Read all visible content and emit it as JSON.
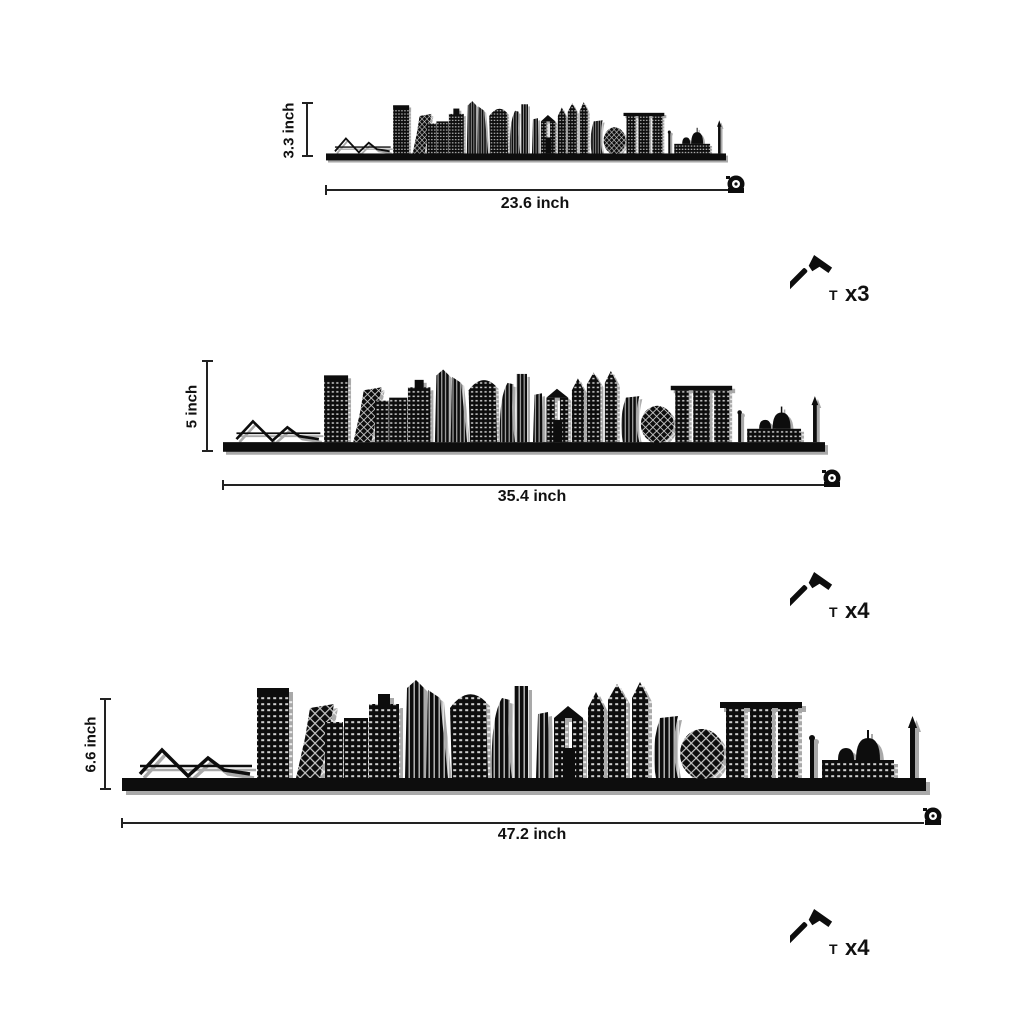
{
  "variants": [
    {
      "height_label": "3.3 inch",
      "width_label": "23.6 inch",
      "nail_count": "x3"
    },
    {
      "height_label": "5 inch",
      "width_label": "35.4 inch",
      "nail_count": "x4"
    },
    {
      "height_label": "6.6 inch",
      "width_label": "47.2 inch",
      "nail_count": "x4"
    }
  ],
  "colors": {
    "silhouette": "#0d0d0d",
    "shadow": "#a8a8a8",
    "window": "#d9d9d9",
    "line": "#222222"
  },
  "icons": {
    "measure": "tape-measure-icon",
    "tool": "hammer-icon",
    "fastener": "nail-icon"
  }
}
